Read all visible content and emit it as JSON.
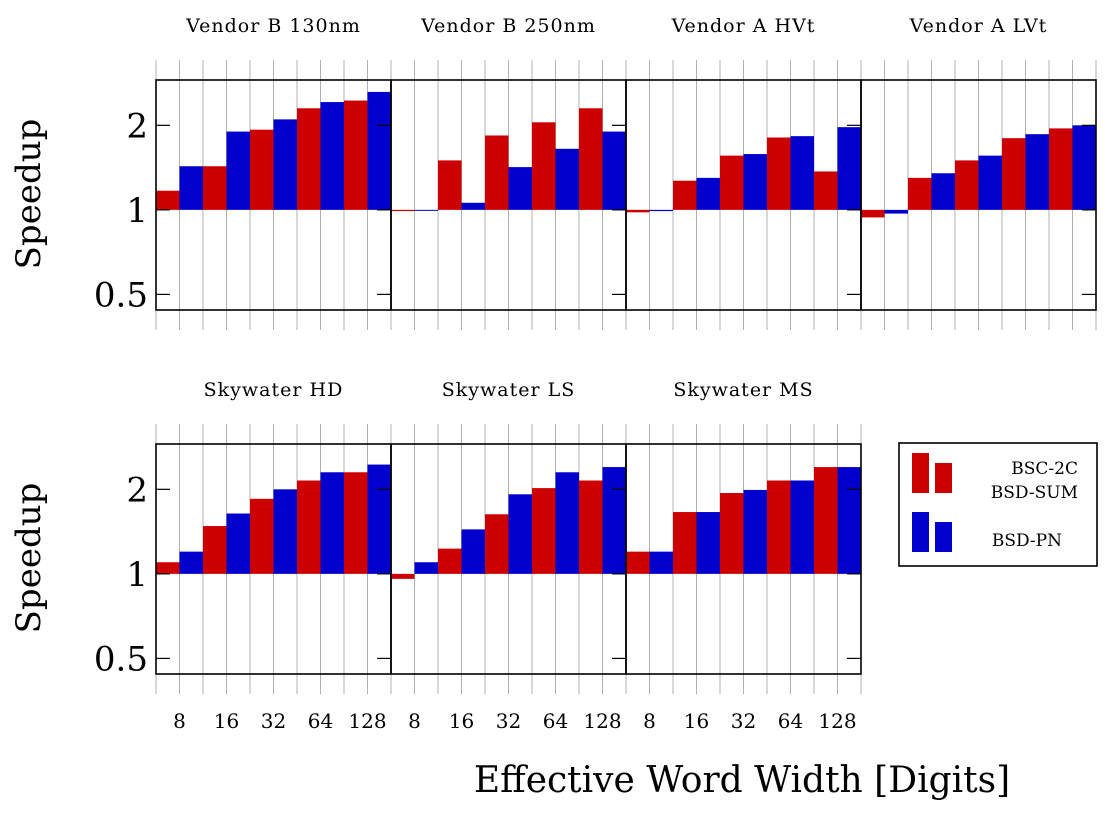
{
  "chart_data": {
    "type": "bar",
    "categories": [
      "8",
      "16",
      "32",
      "64",
      "128"
    ],
    "ylabel": "Speedup",
    "xlabel": "Effective Word Width [Digits]",
    "yscale": "log",
    "yticks": [
      "0.5",
      "1",
      "2"
    ],
    "yticks_values": [
      0.5,
      1,
      2
    ],
    "ylim": [
      0.44,
      2.9
    ],
    "legend": {
      "placement": "right of bottom row",
      "entries": [
        "BSC-2C",
        "BSD-SUM",
        "BSD-PN"
      ]
    },
    "colors": {
      "red": "#cc0000",
      "blue": "#0000cc",
      "grid": "#b0b0b0"
    },
    "panels": [
      {
        "title": "Vendor B 130nm",
        "series": [
          {
            "color": "red",
            "values": [
              1.17,
              1.43,
              1.93,
              2.3,
              2.45
            ]
          },
          {
            "color": "blue",
            "values": [
              1.43,
              1.9,
              2.1,
              2.42,
              2.63
            ]
          }
        ]
      },
      {
        "title": "Vendor B 250nm",
        "series": [
          {
            "color": "red",
            "values": [
              0.99,
              1.5,
              1.84,
              2.05,
              2.3
            ]
          },
          {
            "color": "blue",
            "values": [
              1.0,
              1.06,
              1.42,
              1.65,
              1.9
            ]
          }
        ]
      },
      {
        "title": "Vendor A HVt",
        "series": [
          {
            "color": "red",
            "values": [
              0.98,
              1.27,
              1.56,
              1.81,
              1.37
            ]
          },
          {
            "color": "blue",
            "values": [
              0.99,
              1.3,
              1.58,
              1.83,
              1.97
            ]
          }
        ]
      },
      {
        "title": "Vendor A LVt",
        "series": [
          {
            "color": "red",
            "values": [
              0.94,
              1.3,
              1.5,
              1.8,
              1.95
            ]
          },
          {
            "color": "blue",
            "values": [
              0.97,
              1.35,
              1.56,
              1.86,
              2.0
            ]
          }
        ]
      },
      {
        "title": "Skywater HD",
        "series": [
          {
            "color": "red",
            "values": [
              1.1,
              1.48,
              1.85,
              2.15,
              2.3
            ]
          },
          {
            "color": "blue",
            "values": [
              1.2,
              1.64,
              2.0,
              2.3,
              2.45
            ]
          }
        ]
      },
      {
        "title": "Skywater LS",
        "series": [
          {
            "color": "red",
            "values": [
              0.96,
              1.23,
              1.63,
              2.02,
              2.15
            ]
          },
          {
            "color": "blue",
            "values": [
              1.1,
              1.44,
              1.92,
              2.3,
              2.4
            ]
          }
        ]
      },
      {
        "title": "Skywater MS",
        "series": [
          {
            "color": "red",
            "values": [
              1.2,
              1.66,
              1.94,
              2.15,
              2.4
            ]
          },
          {
            "color": "blue",
            "values": [
              1.2,
              1.66,
              1.99,
              2.15,
              2.4
            ]
          }
        ]
      }
    ]
  }
}
